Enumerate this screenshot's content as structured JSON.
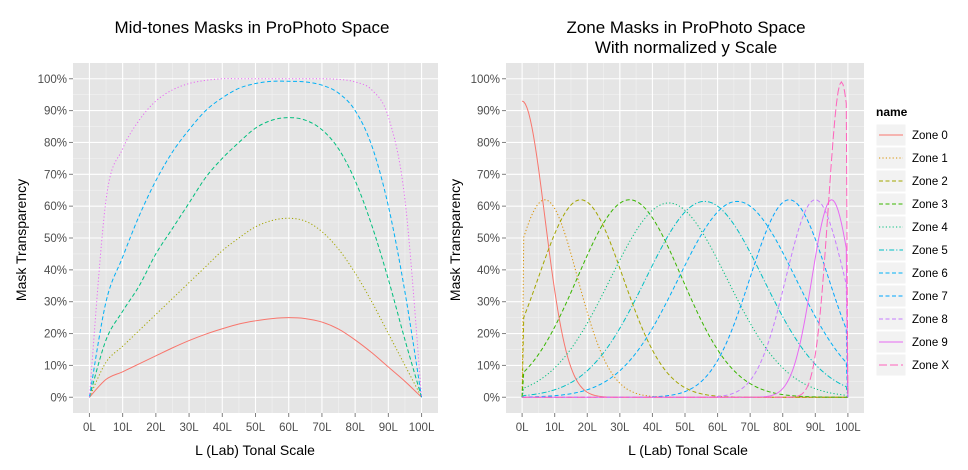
{
  "chart_data": [
    {
      "type": "line",
      "title": "Mid-tones Masks in ProPhoto Space",
      "xlabel": "L (Lab) Tonal Scale",
      "ylabel": "Mask Transparency",
      "xlim": [
        0,
        100
      ],
      "ylim": [
        0,
        1
      ],
      "grid": true,
      "xticks": [
        "0L",
        "10L",
        "20L",
        "30L",
        "40L",
        "50L",
        "60L",
        "70L",
        "80L",
        "90L",
        "100L"
      ],
      "yticks": [
        "0%",
        "10%",
        "20%",
        "30%",
        "40%",
        "50%",
        "60%",
        "70%",
        "80%",
        "90%",
        "100%"
      ],
      "x": [
        0,
        5,
        10,
        15,
        20,
        25,
        30,
        35,
        40,
        45,
        50,
        55,
        60,
        65,
        70,
        75,
        80,
        85,
        90,
        95,
        100
      ],
      "series": [
        {
          "color": "#F8766D",
          "dash": "solid",
          "values": [
            0,
            0.056,
            0.08,
            0.105,
            0.13,
            0.155,
            0.178,
            0.198,
            0.215,
            0.23,
            0.24,
            0.247,
            0.25,
            0.247,
            0.236,
            0.214,
            0.18,
            0.14,
            0.095,
            0.05,
            0
          ]
        },
        {
          "color": "#A3A500",
          "dash": "dotted",
          "values": [
            0,
            0.11,
            0.16,
            0.21,
            0.26,
            0.31,
            0.36,
            0.41,
            0.46,
            0.5,
            0.535,
            0.555,
            0.562,
            0.553,
            0.52,
            0.465,
            0.39,
            0.3,
            0.2,
            0.1,
            0
          ]
        },
        {
          "color": "#00BF7D",
          "dash": "dashed",
          "values": [
            0,
            0.18,
            0.27,
            0.35,
            0.45,
            0.53,
            0.61,
            0.69,
            0.75,
            0.8,
            0.845,
            0.87,
            0.878,
            0.87,
            0.84,
            0.78,
            0.68,
            0.54,
            0.37,
            0.18,
            0
          ]
        },
        {
          "color": "#00B0F6",
          "dash": "dashed",
          "values": [
            0,
            0.3,
            0.44,
            0.57,
            0.68,
            0.77,
            0.84,
            0.9,
            0.94,
            0.97,
            0.985,
            0.992,
            0.992,
            0.99,
            0.98,
            0.955,
            0.9,
            0.79,
            0.6,
            0.33,
            0
          ]
        },
        {
          "color": "#E76BF3",
          "dash": "dotted",
          "values": [
            0,
            0.62,
            0.78,
            0.87,
            0.93,
            0.965,
            0.985,
            0.995,
            1.0,
            1.0,
            1.0,
            1.0,
            1.0,
            1.0,
            1.0,
            0.998,
            0.99,
            0.965,
            0.88,
            0.62,
            0
          ]
        }
      ]
    },
    {
      "type": "line",
      "title": "Zone Masks in ProPhoto Space",
      "subtitle": "With normalized y Scale",
      "xlabel": "L (Lab) Tonal Scale",
      "ylabel": "Mask Transparency",
      "xlim": [
        0,
        100
      ],
      "ylim": [
        0,
        1
      ],
      "grid": true,
      "xticks": [
        "0L",
        "10L",
        "20L",
        "30L",
        "40L",
        "50L",
        "60L",
        "70L",
        "80L",
        "90L",
        "100L"
      ],
      "yticks": [
        "0%",
        "10%",
        "20%",
        "30%",
        "40%",
        "50%",
        "60%",
        "70%",
        "80%",
        "90%",
        "100%"
      ],
      "legend": {
        "title": "name",
        "position": "right"
      },
      "series": [
        {
          "name": "Zone 0",
          "color": "#F8766D",
          "dash": "solid",
          "peak": 0,
          "height": 0.93,
          "sigma": 7
        },
        {
          "name": "Zone 1",
          "color": "#D89000",
          "dash": "dotted",
          "peak": 7,
          "height": 0.62,
          "sigma": 10
        },
        {
          "name": "Zone 2",
          "color": "#A3A500",
          "dash": "dashed",
          "peak": 18,
          "height": 0.62,
          "sigma": 13
        },
        {
          "name": "Zone 3",
          "color": "#39B600",
          "dash": "dashed",
          "peak": 33,
          "height": 0.62,
          "sigma": 16
        },
        {
          "name": "Zone 4",
          "color": "#00BF7D",
          "dash": "dotted",
          "peak": 45,
          "height": 0.61,
          "sigma": 18
        },
        {
          "name": "Zone 5",
          "color": "#00BFC4",
          "dash": "dashdot",
          "peak": 56,
          "height": 0.615,
          "sigma": 18
        },
        {
          "name": "Zone 6",
          "color": "#00B0F6",
          "dash": "dashed",
          "peak": 66,
          "height": 0.615,
          "sigma": 18
        },
        {
          "name": "Zone 7",
          "color": "#00A5FF",
          "dash": "dashed",
          "peak": 82,
          "height": 0.62,
          "sigma": 12
        },
        {
          "name": "Zone 8",
          "color": "#C77CFF",
          "dash": "dashed",
          "peak": 90,
          "height": 0.62,
          "sigma": 9
        },
        {
          "name": "Zone 9",
          "color": "#E76BF3",
          "dash": "solid",
          "peak": 95,
          "height": 0.62,
          "sigma": 6
        },
        {
          "name": "Zone X",
          "color": "#FF62BC",
          "dash": "longdash",
          "peak": 98,
          "height": 0.99,
          "sigma": 4
        }
      ]
    }
  ]
}
